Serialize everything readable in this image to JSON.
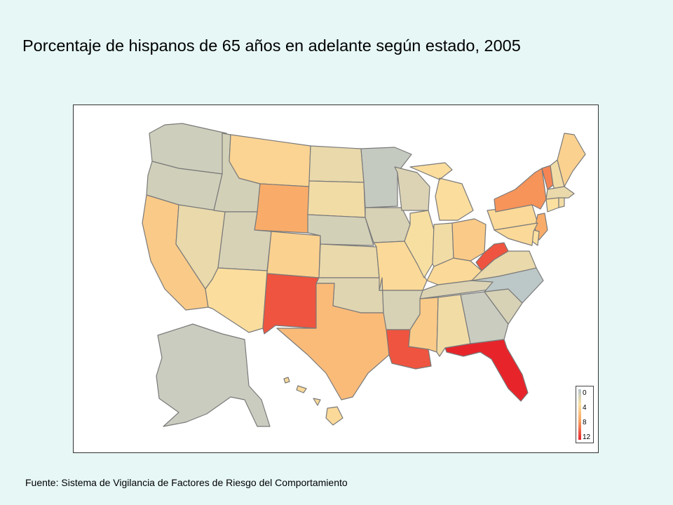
{
  "title": "Porcentaje de hispanos de 65 años en adelante según estado, 2005",
  "source": "Fuente: Sistema de Vigilancia de Factores de Riesgo del Comportamiento",
  "legend": {
    "ticks": [
      "0",
      "4",
      "8",
      "12"
    ],
    "colors": [
      "#b3c3cc",
      "#fbe0a0",
      "#f9a461",
      "#e8242b"
    ]
  },
  "palette": {
    "low": "#b3c3cc",
    "mid": "#fbd18a",
    "high": "#e8242b",
    "background": "#e6f7f5"
  },
  "map_data": {
    "type": "choropleth",
    "region": "United States",
    "unit": "percent",
    "scale_range": [
      0,
      12
    ],
    "states": {
      "WA": 1.5,
      "OR": 1.6,
      "CA": 5.5,
      "NV": 3.0,
      "ID": 1.8,
      "MT": 4.8,
      "WY": 7.5,
      "UT": 2.0,
      "CO": 5.0,
      "AZ": 4.2,
      "NM": 10.5,
      "ND": 3.0,
      "SD": 3.5,
      "NE": 1.8,
      "KS": 3.0,
      "OK": 2.5,
      "TX": 6.5,
      "MN": 1.0,
      "IA": 2.0,
      "MO": 4.5,
      "AR": 2.0,
      "LA": 10.5,
      "WI": 2.2,
      "IL": 3.8,
      "IN": 3.5,
      "MI": 4.2,
      "OH": 5.5,
      "KY": 4.5,
      "TN": 2.2,
      "MS": 5.5,
      "AL": 3.5,
      "GA": 1.2,
      "FL": 12.0,
      "SC": 2.0,
      "NC": 0.5,
      "VA": 3.0,
      "WV": 10.5,
      "PA": 4.5,
      "NY": 8.5,
      "VT": 9.0,
      "NH": 3.5,
      "ME": 5.0,
      "MA": 3.0,
      "CT": 4.0,
      "RI": 3.5,
      "NJ": 7.5,
      "DE": 4.0,
      "MD": 4.5,
      "AK": 1.2,
      "HI": 4.5
    }
  }
}
